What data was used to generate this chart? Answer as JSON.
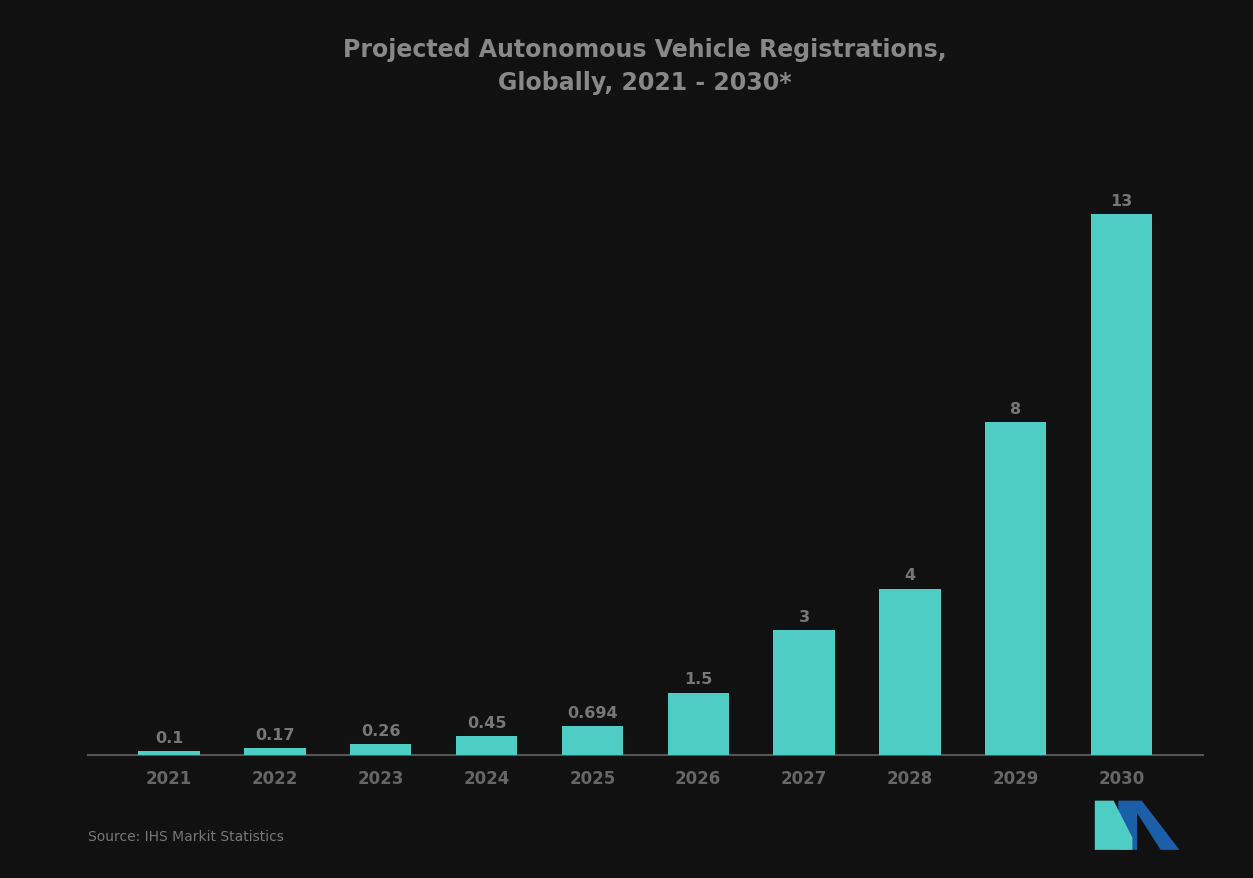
{
  "title_line1": "Projected Autonomous Vehicle Registrations,",
  "title_line2": "Globally, 2021 - 2030*",
  "categories": [
    "2021",
    "2022",
    "2023",
    "2024",
    "2025",
    "2026",
    "2027",
    "2028",
    "2029",
    "2030"
  ],
  "values": [
    0.1,
    0.17,
    0.26,
    0.45,
    0.694,
    1.5,
    3.0,
    4.0,
    8.0,
    13.0
  ],
  "value_labels": [
    "0.1",
    "0.17",
    "0.26",
    "0.45",
    "0.694",
    "1.5",
    "3",
    "4",
    "8",
    "13"
  ],
  "bar_color": "#4ECDC4",
  "background_color": "#111111",
  "plot_bg_color": "#111111",
  "title_color": "#888888",
  "label_color": "#777777",
  "axis_color": "#666666",
  "source_text": "Source: IHS Markit Statistics",
  "ylim": [
    0,
    15
  ],
  "logo_teal": "#4ECDC4",
  "logo_blue": "#1a5fa8"
}
